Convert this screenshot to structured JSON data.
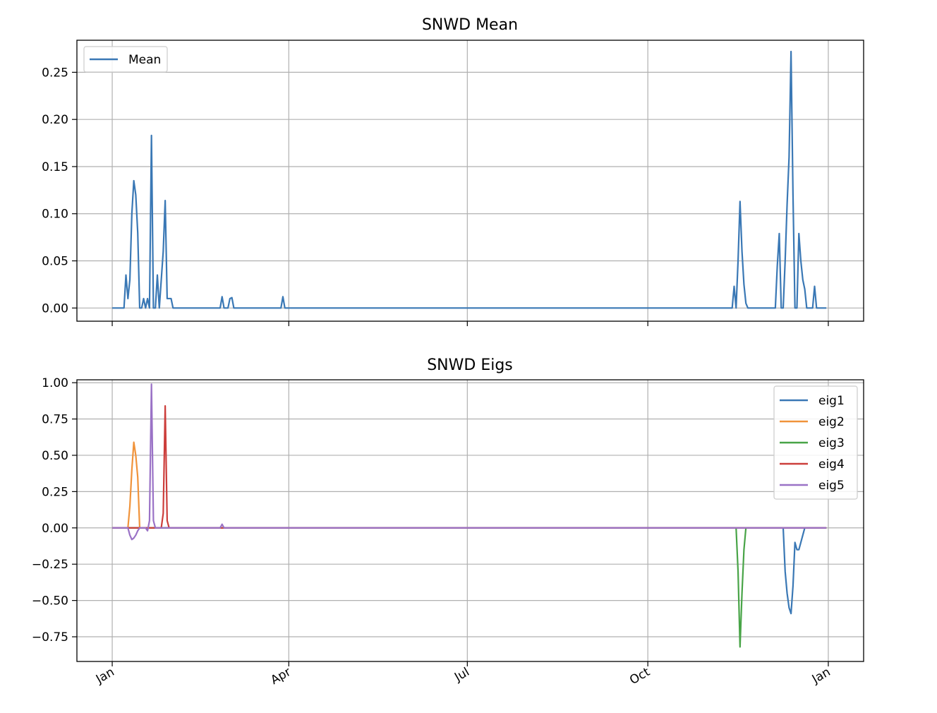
{
  "chart_data": [
    {
      "type": "line",
      "title": "SNWD Mean",
      "xlabel": "",
      "ylabel": "",
      "x_ticks": [
        "Jan",
        "Apr",
        "Jul",
        "Oct",
        "Jan"
      ],
      "x_tick_days": [
        0,
        90,
        181,
        273,
        365
      ],
      "xlim": [
        -18,
        383
      ],
      "ylim": [
        -0.014,
        0.284
      ],
      "y_ticks": [
        0.0,
        0.05,
        0.1,
        0.15,
        0.2,
        0.25
      ],
      "y_tick_labels": [
        "0.00",
        "0.05",
        "0.10",
        "0.15",
        "0.20",
        "0.25"
      ],
      "grid": true,
      "legend": "upper-left",
      "series": [
        {
          "name": "Mean",
          "color": "#3a78b5",
          "points": [
            [
              0,
              0
            ],
            [
              6,
              0
            ],
            [
              7,
              0.035
            ],
            [
              8,
              0.01
            ],
            [
              9,
              0.03
            ],
            [
              10,
              0.1
            ],
            [
              11,
              0.135
            ],
            [
              12,
              0.12
            ],
            [
              13,
              0.08
            ],
            [
              14,
              0
            ],
            [
              15,
              0
            ],
            [
              16,
              0.01
            ],
            [
              17,
              0
            ],
            [
              18,
              0.01
            ],
            [
              19,
              0
            ],
            [
              20,
              0.183
            ],
            [
              21,
              0
            ],
            [
              22,
              0
            ],
            [
              23,
              0.035
            ],
            [
              24,
              0
            ],
            [
              25,
              0.03
            ],
            [
              26,
              0.06
            ],
            [
              27,
              0.114
            ],
            [
              28,
              0.01
            ],
            [
              29,
              0.01
            ],
            [
              30,
              0.01
            ],
            [
              31,
              0
            ],
            [
              55,
              0
            ],
            [
              56,
              0.012
            ],
            [
              57,
              0
            ],
            [
              59,
              0
            ],
            [
              60,
              0.01
            ],
            [
              61,
              0.011
            ],
            [
              62,
              0
            ],
            [
              86,
              0
            ],
            [
              87,
              0.012
            ],
            [
              88,
              0
            ],
            [
              316,
              0
            ],
            [
              317,
              0.023
            ],
            [
              318,
              0
            ],
            [
              319,
              0.05
            ],
            [
              320,
              0.113
            ],
            [
              321,
              0.06
            ],
            [
              322,
              0.025
            ],
            [
              323,
              0.005
            ],
            [
              324,
              0
            ],
            [
              338,
              0
            ],
            [
              339,
              0.045
            ],
            [
              340,
              0.079
            ],
            [
              341,
              0
            ],
            [
              342,
              0
            ],
            [
              343,
              0.05
            ],
            [
              344,
              0.11
            ],
            [
              345,
              0.16
            ],
            [
              346,
              0.272
            ],
            [
              347,
              0.12
            ],
            [
              348,
              0
            ],
            [
              349,
              0
            ],
            [
              350,
              0.079
            ],
            [
              351,
              0.05
            ],
            [
              352,
              0.03
            ],
            [
              353,
              0.02
            ],
            [
              354,
              0
            ],
            [
              357,
              0
            ],
            [
              358,
              0.023
            ],
            [
              359,
              0
            ],
            [
              364,
              0
            ]
          ]
        }
      ]
    },
    {
      "type": "line",
      "title": "SNWD Eigs",
      "xlabel": "",
      "ylabel": "",
      "x_ticks": [
        "Jan",
        "Apr",
        "Jul",
        "Oct",
        "Jan"
      ],
      "x_tick_days": [
        0,
        90,
        181,
        273,
        365
      ],
      "xlim": [
        -18,
        383
      ],
      "ylim": [
        -0.92,
        1.02
      ],
      "y_ticks": [
        -0.75,
        -0.5,
        -0.25,
        0.0,
        0.25,
        0.5,
        0.75,
        1.0
      ],
      "y_tick_labels": [
        "−0.75",
        "−0.50",
        "−0.25",
        "0.00",
        "0.25",
        "0.50",
        "0.75",
        "1.00"
      ],
      "grid": true,
      "legend": "upper-right",
      "series": [
        {
          "name": "eig1",
          "color": "#3a78b5",
          "points": [
            [
              0,
              0
            ],
            [
              342,
              0
            ],
            [
              343,
              -0.3
            ],
            [
              344,
              -0.45
            ],
            [
              345,
              -0.55
            ],
            [
              346,
              -0.59
            ],
            [
              347,
              -0.4
            ],
            [
              348,
              -0.1
            ],
            [
              349,
              -0.15
            ],
            [
              350,
              -0.15
            ],
            [
              351,
              -0.1
            ],
            [
              352,
              -0.05
            ],
            [
              353,
              0
            ],
            [
              364,
              0
            ]
          ]
        },
        {
          "name": "eig2",
          "color": "#f0933b",
          "points": [
            [
              0,
              0
            ],
            [
              8,
              0
            ],
            [
              9,
              0.15
            ],
            [
              10,
              0.4
            ],
            [
              11,
              0.59
            ],
            [
              12,
              0.5
            ],
            [
              13,
              0.35
            ],
            [
              14,
              0
            ],
            [
              364,
              0
            ]
          ]
        },
        {
          "name": "eig3",
          "color": "#48a447",
          "points": [
            [
              0,
              0
            ],
            [
              318,
              0
            ],
            [
              319,
              -0.3
            ],
            [
              320,
              -0.82
            ],
            [
              321,
              -0.45
            ],
            [
              322,
              -0.15
            ],
            [
              323,
              0
            ],
            [
              364,
              0
            ]
          ]
        },
        {
          "name": "eig4",
          "color": "#cc3e3b",
          "points": [
            [
              0,
              0
            ],
            [
              25,
              0
            ],
            [
              26,
              0.1
            ],
            [
              27,
              0.84
            ],
            [
              28,
              0.05
            ],
            [
              29,
              0
            ],
            [
              364,
              0
            ]
          ]
        },
        {
          "name": "eig5",
          "color": "#9a72c6",
          "points": [
            [
              0,
              0
            ],
            [
              8,
              0
            ],
            [
              9,
              -0.05
            ],
            [
              10,
              -0.08
            ],
            [
              11,
              -0.07
            ],
            [
              12,
              -0.05
            ],
            [
              13,
              -0.02
            ],
            [
              14,
              0
            ],
            [
              17,
              0
            ],
            [
              18,
              -0.02
            ],
            [
              19,
              0.05
            ],
            [
              20,
              0.99
            ],
            [
              21,
              0.05
            ],
            [
              22,
              0
            ],
            [
              55,
              0
            ],
            [
              56,
              0.025
            ],
            [
              57,
              0
            ],
            [
              364,
              0
            ]
          ]
        }
      ]
    }
  ]
}
